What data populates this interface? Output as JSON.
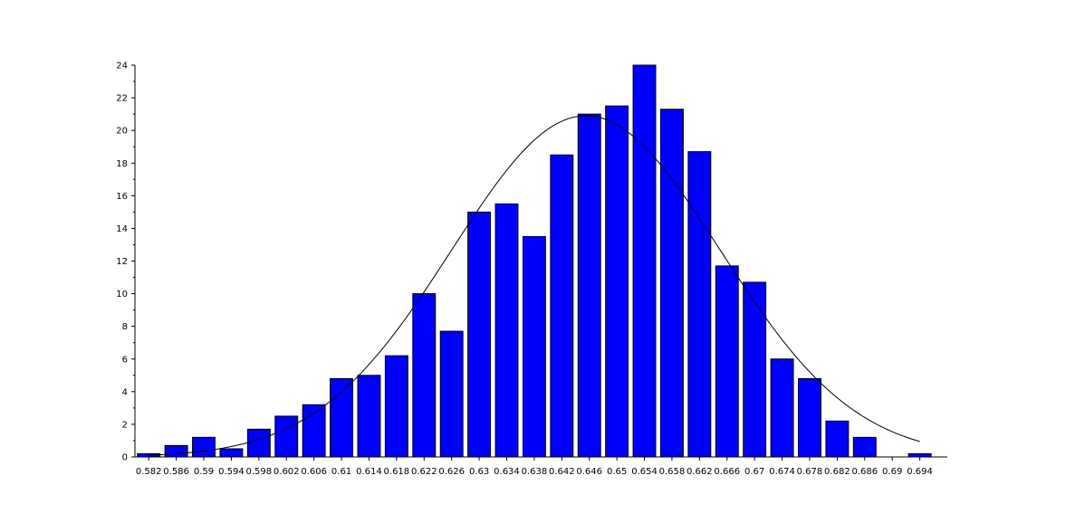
{
  "chart_data": {
    "type": "bar",
    "title": "",
    "xlabel": "",
    "ylabel": "",
    "bar_color": "#0000ff",
    "edge_color": "#000000",
    "curve_color": "#000000",
    "grid": false,
    "legend": "none",
    "xlim": [
      0.58,
      0.698
    ],
    "ylim": [
      0,
      24
    ],
    "x": [
      0.582,
      0.586,
      0.59,
      0.594,
      0.598,
      0.602,
      0.606,
      0.61,
      0.614,
      0.618,
      0.622,
      0.626,
      0.63,
      0.634,
      0.638,
      0.642,
      0.646,
      0.65,
      0.654,
      0.658,
      0.662,
      0.666,
      0.67,
      0.674,
      0.678,
      0.682,
      0.686,
      0.69,
      0.694
    ],
    "x_tick_labels": [
      "0.582",
      "0.586",
      "0.59",
      "0.594",
      "0.598",
      "0.602",
      "0.606",
      "0.61",
      "0.614",
      "0.618",
      "0.622",
      "0.626",
      "0.63",
      "0.634",
      "0.638",
      "0.642",
      "0.646",
      "0.65",
      "0.654",
      "0.658",
      "0.662",
      "0.666",
      "0.67",
      "0.674",
      "0.678",
      "0.682",
      "0.686",
      "0.69",
      "0.694"
    ],
    "values": [
      0.2,
      0.7,
      1.2,
      0.5,
      1.7,
      2.5,
      3.2,
      4.8,
      5.0,
      6.2,
      10.0,
      7.7,
      15.0,
      15.5,
      13.5,
      18.5,
      21.0,
      21.5,
      24.0,
      21.3,
      18.7,
      11.7,
      10.7,
      6.0,
      4.8,
      2.2,
      1.2,
      0,
      0.2
    ],
    "y_ticks": [
      0,
      2,
      4,
      6,
      8,
      10,
      12,
      14,
      16,
      18,
      20,
      22,
      24
    ],
    "y_tick_labels": [
      "0",
      "2",
      "4",
      "6",
      "8",
      "10",
      "12",
      "14",
      "16",
      "18",
      "20",
      "22",
      "24"
    ],
    "fit_curve": {
      "type": "normal",
      "mean": 0.6455,
      "std": 0.0195,
      "peak": 20.9,
      "x_range": [
        0.582,
        0.694
      ]
    }
  }
}
